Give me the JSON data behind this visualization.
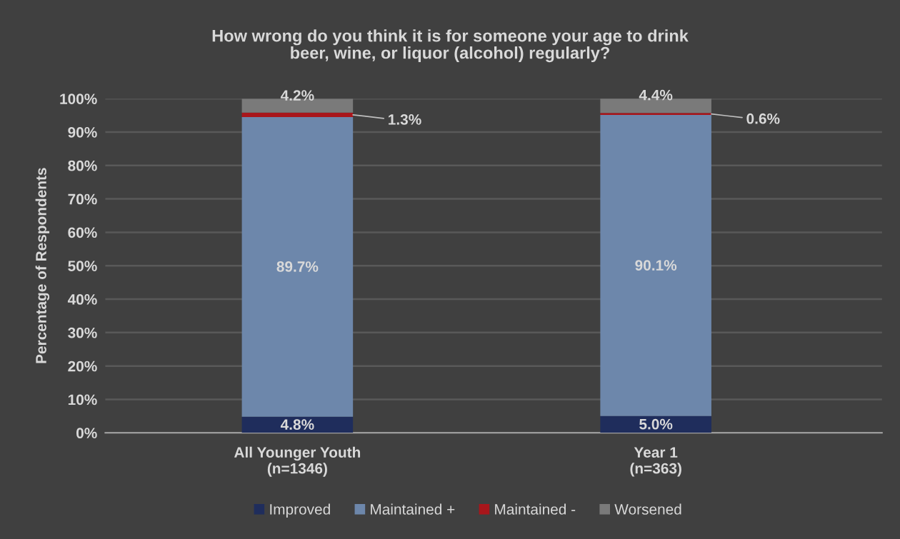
{
  "chart_data": {
    "type": "bar",
    "stacked": true,
    "title": "How wrong do you think it is for someone your age to drink\nbeer, wine, or liquor (alcohol) regularly?",
    "ylabel": "Percentage of Respondents",
    "categories": [
      "All Younger Youth\n(n=1346)",
      "Year 1\n(n=363)"
    ],
    "series": [
      {
        "name": "Improved",
        "color": "#1f2d5c",
        "values": [
          4.8,
          5.0
        ],
        "value_labels": [
          "4.8%",
          "5.0%"
        ]
      },
      {
        "name": "Maintained +",
        "color": "#6d87ab",
        "values": [
          89.7,
          90.1
        ],
        "value_labels": [
          "89.7%",
          "90.1%"
        ]
      },
      {
        "name": "Maintained -",
        "color": "#a8161b",
        "values": [
          1.3,
          0.6
        ],
        "value_labels": [
          "1.3%",
          "0.6%"
        ]
      },
      {
        "name": "Worsened",
        "color": "#7a7a7a",
        "values": [
          4.2,
          4.4
        ],
        "value_labels": [
          "4.2%",
          "4.4%"
        ]
      }
    ],
    "ylim": [
      0,
      100
    ],
    "yticks": [
      {
        "value": 0,
        "label": "0%"
      },
      {
        "value": 10,
        "label": "10%"
      },
      {
        "value": 20,
        "label": "20%"
      },
      {
        "value": 30,
        "label": "30%"
      },
      {
        "value": 40,
        "label": "40%"
      },
      {
        "value": 50,
        "label": "50%"
      },
      {
        "value": 60,
        "label": "60%"
      },
      {
        "value": 70,
        "label": "70%"
      },
      {
        "value": 80,
        "label": "80%"
      },
      {
        "value": 90,
        "label": "90%"
      },
      {
        "value": 100,
        "label": "100%"
      }
    ],
    "grid": "y",
    "legend": "bottom"
  }
}
